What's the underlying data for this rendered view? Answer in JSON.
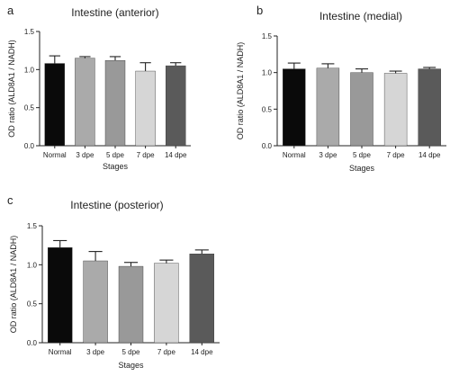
{
  "chart_data": [
    {
      "type": "bar",
      "panel_label": "a",
      "title": "Intestine (anterior)",
      "categories": [
        "Normal",
        "3 dpe",
        "5 dpe",
        "7 dpe",
        "14 dpe"
      ],
      "values": [
        1.08,
        1.15,
        1.12,
        0.98,
        1.05
      ],
      "errors": [
        0.1,
        0.02,
        0.05,
        0.11,
        0.04
      ],
      "colors": [
        "#0a0a0a",
        "#aaaaaa",
        "#999999",
        "#d6d6d6",
        "#5a5a5a"
      ],
      "xlabel": "Stages",
      "ylabel": "OD ratio  (ALD8A1 / NADH)",
      "ylim": [
        0,
        1.5
      ],
      "yticks": [
        "0.0",
        "0.5",
        "1.0",
        "1.5"
      ],
      "grid": false
    },
    {
      "type": "bar",
      "panel_label": "b",
      "title": "Intestine (medial)",
      "categories": [
        "Normal",
        "3 dpe",
        "5 dpe",
        "7 dpe",
        "14 dpe"
      ],
      "values": [
        1.05,
        1.06,
        1.0,
        0.99,
        1.05
      ],
      "errors": [
        0.08,
        0.06,
        0.05,
        0.03,
        0.02
      ],
      "colors": [
        "#0a0a0a",
        "#aaaaaa",
        "#999999",
        "#d6d6d6",
        "#5a5a5a"
      ],
      "xlabel": "Stages",
      "ylabel": "OD ratio  (ALD8A1 / NADH)",
      "ylim": [
        0,
        1.5
      ],
      "yticks": [
        "0.0",
        "0.5",
        "1.0",
        "1.5"
      ],
      "grid": false
    },
    {
      "type": "bar",
      "panel_label": "c",
      "title": "Intestine (posterior)",
      "categories": [
        "Normal",
        "3 dpe",
        "5 dpe",
        "7 dpe",
        "14 dpe"
      ],
      "values": [
        1.22,
        1.05,
        0.98,
        1.02,
        1.14
      ],
      "errors": [
        0.09,
        0.12,
        0.05,
        0.04,
        0.05
      ],
      "colors": [
        "#0a0a0a",
        "#aaaaaa",
        "#999999",
        "#d6d6d6",
        "#5a5a5a"
      ],
      "xlabel": "Stages",
      "ylabel": "OD ratio  (ALD8A1 / NADH)",
      "ylim": [
        0,
        1.5
      ],
      "yticks": [
        "0.0",
        "0.5",
        "1.0",
        "1.5"
      ],
      "grid": false
    }
  ]
}
